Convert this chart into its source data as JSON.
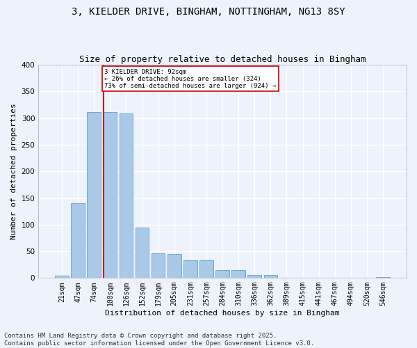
{
  "title1": "3, KIELDER DRIVE, BINGHAM, NOTTINGHAM, NG13 8SY",
  "title2": "Size of property relative to detached houses in Bingham",
  "xlabel": "Distribution of detached houses by size in Bingham",
  "ylabel": "Number of detached properties",
  "categories": [
    "21sqm",
    "47sqm",
    "74sqm",
    "100sqm",
    "126sqm",
    "152sqm",
    "179sqm",
    "205sqm",
    "231sqm",
    "257sqm",
    "284sqm",
    "310sqm",
    "336sqm",
    "362sqm",
    "389sqm",
    "415sqm",
    "441sqm",
    "467sqm",
    "494sqm",
    "520sqm",
    "546sqm"
  ],
  "values": [
    4,
    140,
    312,
    311,
    309,
    95,
    46,
    45,
    33,
    33,
    15,
    15,
    6,
    6,
    1,
    0,
    0,
    0,
    0,
    0,
    2
  ],
  "bar_color": "#aac8e8",
  "bar_edge_color": "#6aaad4",
  "background_color": "#eef2fa",
  "grid_color": "#ffffff",
  "vline_color": "#cc0000",
  "annotation_text": "3 KIELDER DRIVE: 92sqm\n← 26% of detached houses are smaller (324)\n73% of semi-detached houses are larger (924) →",
  "annotation_box_color": "#cc0000",
  "ylim": [
    0,
    400
  ],
  "yticks": [
    0,
    50,
    100,
    150,
    200,
    250,
    300,
    350,
    400
  ],
  "footer1": "Contains HM Land Registry data © Crown copyright and database right 2025.",
  "footer2": "Contains public sector information licensed under the Open Government Licence v3.0.",
  "title1_fontsize": 10,
  "title2_fontsize": 9,
  "tick_fontsize": 7,
  "ylabel_fontsize": 8,
  "xlabel_fontsize": 8,
  "footer_fontsize": 6.5
}
